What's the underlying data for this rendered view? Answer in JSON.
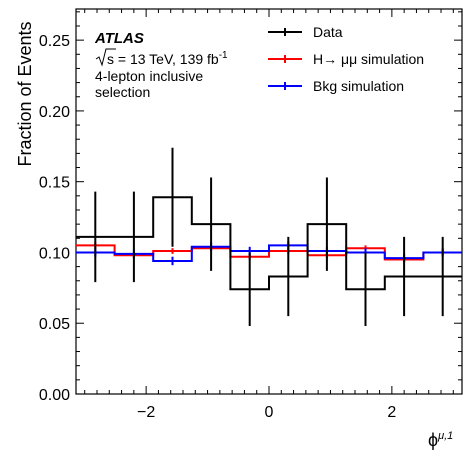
{
  "chart_data": {
    "type": "step",
    "xlabel": "ϕ",
    "xlabel_sup": "μ,1",
    "ylabel": "Fraction of Events",
    "xlim": [
      -3.14159,
      3.14159
    ],
    "ylim": [
      0.0,
      0.272
    ],
    "x_ticks": [
      -2,
      0,
      2
    ],
    "x_tick_labels": [
      "−2",
      "0",
      "2"
    ],
    "y_ticks": [
      0.0,
      0.05,
      0.1,
      0.15,
      0.2,
      0.25
    ],
    "y_tick_labels": [
      "0.00",
      "0.05",
      "0.10",
      "0.15",
      "0.20",
      "0.25"
    ],
    "bin_edges": [
      -3.14159,
      -2.51327,
      -1.88496,
      -1.25664,
      -0.62832,
      0.0,
      0.62832,
      1.25664,
      1.88496,
      2.51327,
      3.14159
    ],
    "series": [
      {
        "name": "Data",
        "color": "#000000",
        "values": [
          0.111,
          0.111,
          0.139,
          0.12,
          0.074,
          0.083,
          0.12,
          0.074,
          0.083,
          0.083
        ],
        "errors": [
          0.032,
          0.032,
          0.035,
          0.033,
          0.026,
          0.028,
          0.033,
          0.026,
          0.028,
          0.028
        ]
      },
      {
        "name": "H→ μμ simulation",
        "color": "#ff0000",
        "values": [
          0.105,
          0.098,
          0.101,
          0.103,
          0.097,
          0.101,
          0.098,
          0.103,
          0.095,
          0.1
        ],
        "errors": [
          0.002,
          0.002,
          0.002,
          0.002,
          0.002,
          0.002,
          0.002,
          0.002,
          0.002,
          0.002
        ]
      },
      {
        "name": "Bkg simulation",
        "color": "#0000ff",
        "values": [
          0.1,
          0.099,
          0.094,
          0.104,
          0.101,
          0.105,
          0.101,
          0.1,
          0.096,
          0.1
        ],
        "errors": [
          0.003,
          0.003,
          0.003,
          0.003,
          0.003,
          0.003,
          0.003,
          0.003,
          0.003,
          0.003
        ]
      }
    ],
    "legend_position": "top-right",
    "annotations": {
      "experiment": "ATLAS",
      "sqrt_s": "s = 13 TeV, 139 fb",
      "lumi_sup": "-1",
      "line2": "4-lepton inclusive",
      "line3": "selection"
    },
    "grid": false
  }
}
